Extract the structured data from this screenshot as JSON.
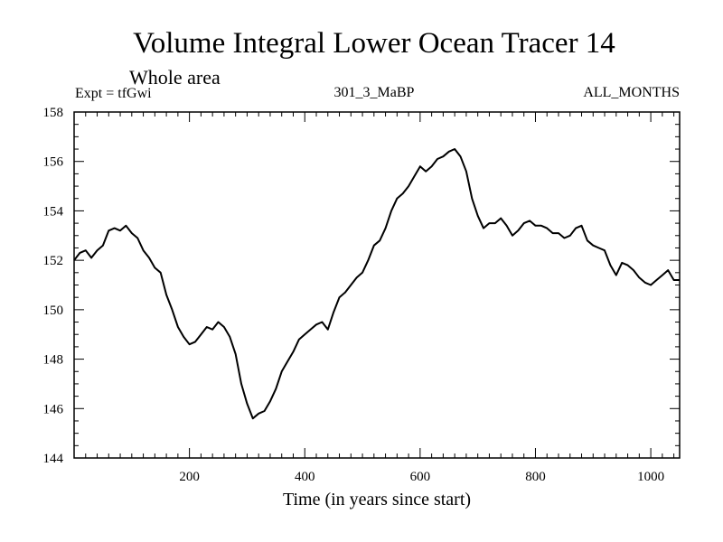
{
  "chart_data": {
    "type": "line",
    "title": "Volume Integral Lower Ocean Tracer 14",
    "subtitle": "Whole area",
    "annotations": {
      "left": "Expt = tfGwi",
      "center": "301_3_MaBP",
      "right": "ALL_MONTHS"
    },
    "xlabel": "Time (in years since start)",
    "ylabel": "",
    "xlim": [
      0,
      1050
    ],
    "ylim": [
      144,
      158
    ],
    "xticks": [
      200,
      400,
      600,
      800,
      1000
    ],
    "yticks": [
      144,
      146,
      148,
      150,
      152,
      154,
      156,
      158
    ],
    "grid": false,
    "series": [
      {
        "name": "Volume Integral Lower Ocean Tracer 14",
        "x": [
          0,
          10,
          20,
          30,
          40,
          50,
          60,
          70,
          80,
          90,
          100,
          110,
          120,
          130,
          140,
          150,
          160,
          170,
          180,
          190,
          200,
          210,
          220,
          230,
          240,
          250,
          260,
          270,
          280,
          290,
          300,
          310,
          320,
          330,
          340,
          350,
          360,
          370,
          380,
          390,
          400,
          410,
          420,
          430,
          440,
          450,
          460,
          470,
          480,
          490,
          500,
          510,
          520,
          530,
          540,
          550,
          560,
          570,
          580,
          590,
          600,
          610,
          620,
          630,
          640,
          650,
          660,
          670,
          680,
          690,
          700,
          710,
          720,
          730,
          740,
          750,
          760,
          770,
          780,
          790,
          800,
          810,
          820,
          830,
          840,
          850,
          860,
          870,
          880,
          890,
          900,
          910,
          920,
          930,
          940,
          950,
          960,
          970,
          980,
          990,
          1000,
          1010,
          1020,
          1030,
          1040,
          1050
        ],
        "values": [
          152.0,
          152.3,
          152.4,
          152.1,
          152.4,
          152.6,
          153.2,
          153.3,
          153.2,
          153.4,
          153.1,
          152.9,
          152.4,
          152.1,
          151.7,
          151.5,
          150.6,
          150.0,
          149.3,
          148.9,
          148.6,
          148.7,
          149.0,
          149.3,
          149.2,
          149.5,
          149.3,
          148.9,
          148.2,
          147.0,
          146.2,
          145.6,
          145.8,
          145.9,
          146.3,
          146.8,
          147.5,
          147.9,
          148.3,
          148.8,
          149.0,
          149.2,
          149.4,
          149.5,
          149.2,
          149.9,
          150.5,
          150.7,
          151.0,
          151.3,
          151.5,
          152.0,
          152.6,
          152.8,
          153.3,
          154.0,
          154.5,
          154.7,
          155.0,
          155.4,
          155.8,
          155.6,
          155.8,
          156.1,
          156.2,
          156.4,
          156.5,
          156.2,
          155.6,
          154.5,
          153.8,
          153.3,
          153.5,
          153.5,
          153.7,
          153.4,
          153.0,
          153.2,
          153.5,
          153.6,
          153.4,
          153.4,
          153.3,
          153.1,
          153.1,
          152.9,
          153.0,
          153.3,
          153.4,
          152.8,
          152.6,
          152.5,
          152.4,
          151.8,
          151.4,
          151.9,
          151.8,
          151.6,
          151.3,
          151.1,
          151.0,
          151.2,
          151.4,
          151.6,
          151.2,
          151.2
        ]
      }
    ]
  }
}
